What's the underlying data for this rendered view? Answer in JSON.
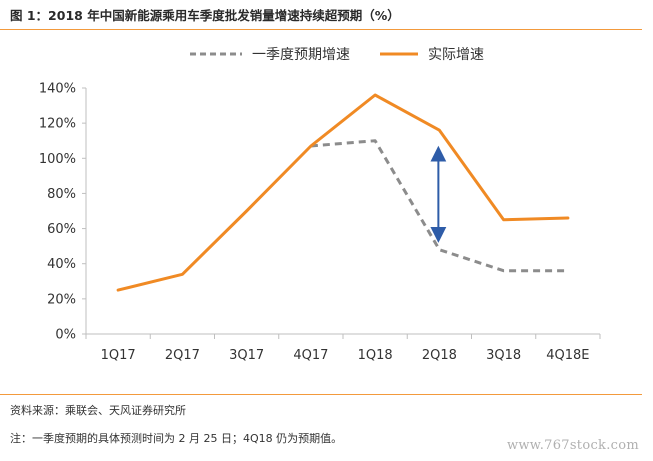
{
  "figure_title": "图 1：2018 年中国新能源乘用车季度批发销量增速持续超预期（%）",
  "source_note": "资料来源：乘联会、天风证券研究所",
  "remark": "注：一季度预期的具体预测时间为 2 月 25 日；4Q18 仍为预期值。",
  "watermark": "www.767stock.com",
  "colors": {
    "rule": "#f39a3c",
    "actual": "#f08a24",
    "expected": "#8c8c8c",
    "arrow": "#2e5ca8",
    "axis": "#bfbfbf"
  },
  "chart_data": {
    "type": "line",
    "categories": [
      "1Q17",
      "2Q17",
      "3Q17",
      "4Q17",
      "1Q18",
      "2Q18",
      "3Q18",
      "4Q18E"
    ],
    "y_tick_labels": [
      "0%",
      "20%",
      "40%",
      "60%",
      "80%",
      "100%",
      "120%",
      "140%"
    ],
    "ylim": [
      0,
      140
    ],
    "grid": false,
    "legend_position": "top-center",
    "series": [
      {
        "name": "一季度预期增速",
        "style": "dashed",
        "color": "#8c8c8c",
        "values": [
          null,
          null,
          null,
          107,
          110,
          48,
          36,
          36
        ]
      },
      {
        "name": "实际增速",
        "style": "solid",
        "color": "#f08a24",
        "values": [
          25,
          34,
          70,
          107,
          136,
          116,
          65,
          66
        ]
      }
    ],
    "annotation": {
      "type": "double-arrow",
      "category": "2Q18",
      "from": 53,
      "to": 106,
      "color": "#2e5ca8"
    }
  }
}
